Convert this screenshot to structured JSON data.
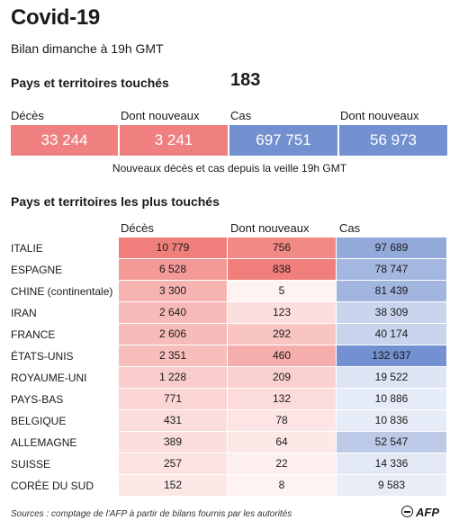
{
  "title": "Covid-19",
  "subtitle": "Bilan dimanche à 19h GMT",
  "countries": {
    "label": "Pays et territoires touchés",
    "value": "183"
  },
  "summary": {
    "labels": [
      "Décès",
      "Dont nouveaux",
      "Cas",
      "Dont nouveaux"
    ],
    "values": [
      "33 244",
      "3 241",
      "697 751",
      "56 973"
    ],
    "colors": [
      "#f08080",
      "#f08080",
      "#7391d0",
      "#7391d0"
    ],
    "note": "Nouveaux décès et cas depuis la veille 19h GMT"
  },
  "table": {
    "heading": "Pays et territoires les plus touchés",
    "columns": [
      "Décès",
      "Dont nouveaux",
      "Cas"
    ],
    "rows": [
      {
        "name": "ITALIE",
        "deaths": "10 779",
        "new": "756",
        "cases": "97 689"
      },
      {
        "name": "ESPAGNE",
        "deaths": "6 528",
        "new": "838",
        "cases": "78 747"
      },
      {
        "name": "CHINE (continentale)",
        "deaths": "3 300",
        "new": "5",
        "cases": "81 439"
      },
      {
        "name": "IRAN",
        "deaths": "2 640",
        "new": "123",
        "cases": "38 309"
      },
      {
        "name": "FRANCE",
        "deaths": "2 606",
        "new": "292",
        "cases": "40 174"
      },
      {
        "name": "ÉTATS-UNIS",
        "deaths": "2 351",
        "new": "460",
        "cases": "132 637"
      },
      {
        "name": "ROYAUME-UNI",
        "deaths": "1 228",
        "new": "209",
        "cases": "19 522"
      },
      {
        "name": "PAYS-BAS",
        "deaths": "771",
        "new": "132",
        "cases": "10 886"
      },
      {
        "name": "BELGIQUE",
        "deaths": "431",
        "new": "78",
        "cases": "10 836"
      },
      {
        "name": "ALLEMAGNE",
        "deaths": "389",
        "new": "64",
        "cases": "52 547"
      },
      {
        "name": "SUISSE",
        "deaths": "257",
        "new": "22",
        "cases": "14 336"
      },
      {
        "name": "CORÉE DU SUD",
        "deaths": "152",
        "new": "8",
        "cases": "9 583"
      }
    ],
    "death_color": "#f07f7b",
    "case_color": "#7391d0"
  },
  "sources": "Sources : comptage de l'AFP à partir de bilans fournis par les autorités",
  "logo": "AFP"
}
